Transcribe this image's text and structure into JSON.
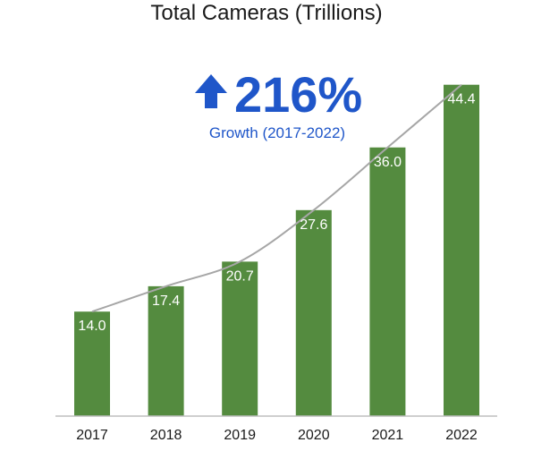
{
  "chart_data": {
    "type": "bar",
    "title": "Total Cameras (Trillions)",
    "categories": [
      "2017",
      "2018",
      "2019",
      "2020",
      "2021",
      "2022"
    ],
    "values": [
      14.0,
      17.4,
      20.7,
      27.6,
      36.0,
      44.4
    ],
    "data_labels": [
      "14.0",
      "17.4",
      "20.7",
      "27.6",
      "36.0",
      "44.4"
    ],
    "xlabel": "",
    "ylabel": "",
    "ylim": [
      0,
      50
    ],
    "grid": false,
    "legend": "none",
    "trendline": true,
    "annotation": {
      "icon": "up-arrow-icon",
      "headline": "216%",
      "subtext": "Growth (2017-2022)"
    },
    "colors": {
      "bar": "#548b3f",
      "trendline": "#a6a6a6",
      "annotation": "#1f56c9",
      "axis": "#bfbfbf"
    }
  }
}
